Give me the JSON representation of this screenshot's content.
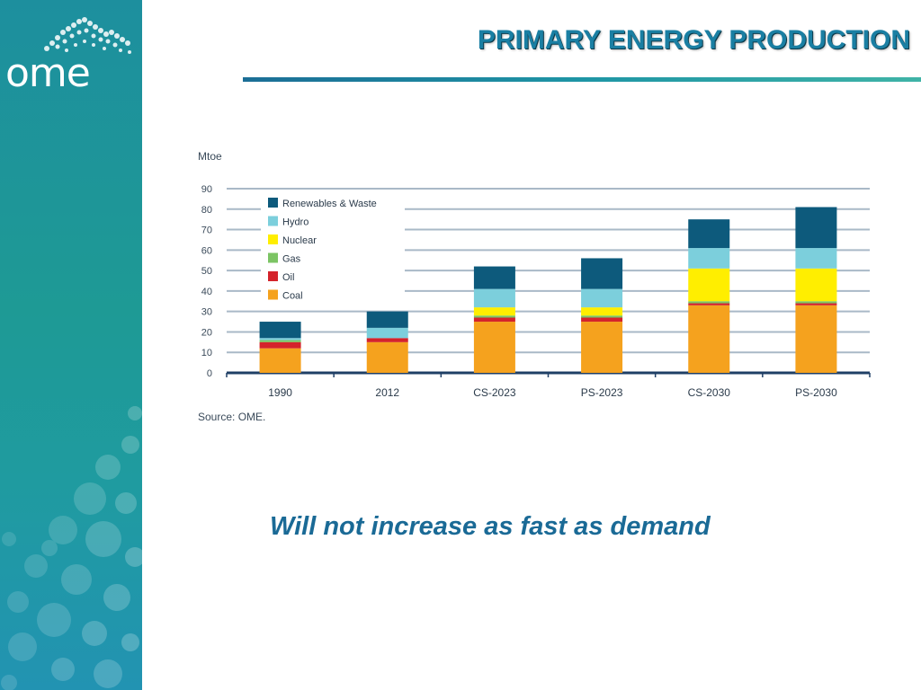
{
  "slide": {
    "title": "PRIMARY ENERGY PRODUCTION",
    "subtitle": "Will not increase as fast as demand",
    "logo_text": "ome"
  },
  "colors": {
    "title": "#1a7fa3",
    "subtitle": "#1a6a96",
    "sidebar": "#1e9a95"
  },
  "chart_data": {
    "type": "bar",
    "stacked": true,
    "ylabel": "Mtoe",
    "ylim": [
      0,
      90
    ],
    "yticks": [
      0,
      10,
      20,
      30,
      40,
      50,
      60,
      70,
      80,
      90
    ],
    "grid": true,
    "legend_position": "top-left",
    "source": "Source: OME.",
    "categories": [
      "1990",
      "2012",
      "CS-2023",
      "PS-2023",
      "CS-2030",
      "PS-2030"
    ],
    "series": [
      {
        "name": "Coal",
        "color": "#f5a21e",
        "values": [
          12,
          15,
          25,
          25,
          33,
          33
        ]
      },
      {
        "name": "Oil",
        "color": "#d4232b",
        "values": [
          3,
          2,
          2,
          2,
          1,
          1
        ]
      },
      {
        "name": "Gas",
        "color": "#7cc464",
        "values": [
          1,
          0,
          1,
          1,
          1,
          1
        ]
      },
      {
        "name": "Nuclear",
        "color": "#ffee00",
        "values": [
          0,
          0,
          4,
          4,
          16,
          16
        ]
      },
      {
        "name": "Hydro",
        "color": "#7ccfdc",
        "values": [
          1,
          5,
          9,
          9,
          10,
          10
        ]
      },
      {
        "name": "Renewables & Waste",
        "color": "#0d5a7c",
        "values": [
          8,
          8,
          11,
          15,
          14,
          20
        ]
      }
    ]
  }
}
